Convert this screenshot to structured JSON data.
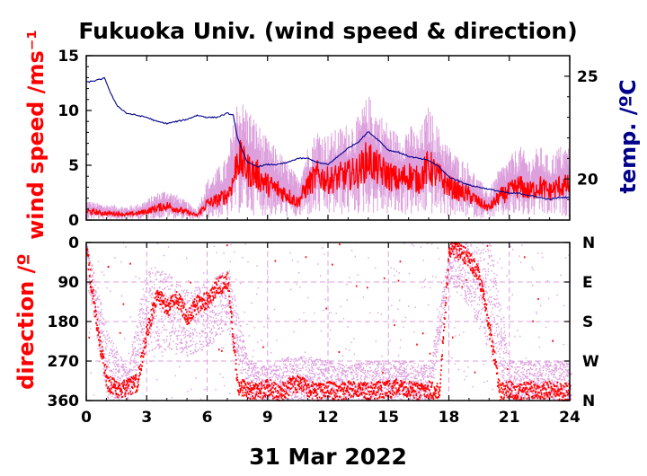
{
  "chart_data": [
    {
      "type": "line",
      "panel": "top",
      "title": "Fukuoka Univ. (wind speed & direction)",
      "ylabel": "wind speed /ms⁻¹",
      "y2label": "temp. /ºC",
      "xlim": [
        0,
        24
      ],
      "ylim": [
        0,
        15
      ],
      "y2lim": [
        18,
        26
      ],
      "yticks": [
        0,
        5,
        10,
        15
      ],
      "y2ticks": [
        20,
        25
      ],
      "colors": {
        "gust": "#dda0dd",
        "wind": "#ff0000",
        "temp": "#00008b"
      },
      "series": [
        {
          "name": "",
          "role": "wind speed (red)",
          "x": [
            0,
            0.5,
            1,
            1.5,
            2,
            2.5,
            3,
            3.5,
            4,
            4.5,
            5,
            5.5,
            6,
            6.5,
            7,
            7.3,
            7.5,
            8,
            8.5,
            9,
            9.5,
            10,
            10.5,
            11,
            11.5,
            12,
            12.5,
            13,
            13.5,
            14,
            14.5,
            15,
            15.5,
            16,
            16.5,
            17,
            17.5,
            18,
            18.5,
            19,
            19.5,
            20,
            20.5,
            21,
            21.5,
            22,
            22.5,
            23,
            23.5,
            24
          ],
          "y": [
            0.8,
            0.7,
            0.6,
            0.6,
            0.5,
            0.6,
            0.8,
            1.1,
            1.3,
            1.0,
            0.7,
            0.4,
            1.5,
            1.8,
            2.3,
            3.5,
            5.8,
            4.6,
            4.1,
            3.2,
            2.8,
            2.3,
            1.6,
            3.2,
            4.1,
            3.6,
            3.9,
            4.1,
            4.4,
            5.6,
            4.6,
            4.1,
            3.6,
            4.1,
            3.6,
            4.9,
            3.9,
            3.1,
            2.6,
            2.3,
            1.6,
            1.1,
            2.1,
            2.6,
            3.1,
            2.6,
            3.1,
            2.6,
            3.1,
            3.1
          ]
        },
        {
          "name": "",
          "role": "gust envelope (violet)",
          "x": [
            0,
            0.5,
            1,
            1.5,
            2,
            2.5,
            3,
            3.5,
            4,
            4.5,
            5,
            5.5,
            6,
            6.5,
            7,
            7.3,
            7.5,
            8,
            8.5,
            9,
            9.5,
            10,
            10.5,
            11,
            11.5,
            12,
            12.5,
            13,
            13.5,
            14,
            14.5,
            15,
            15.5,
            16,
            16.5,
            17,
            17.5,
            18,
            18.5,
            19,
            19.5,
            20,
            20.5,
            21,
            21.5,
            22,
            22.5,
            23,
            23.5,
            24
          ],
          "y": [
            1.8,
            1.5,
            1.4,
            1.3,
            1.2,
            1.4,
            1.8,
            2.4,
            2.7,
            2.2,
            1.6,
            1.0,
            3.5,
            4.5,
            5.5,
            8.5,
            10.8,
            10.0,
            8.5,
            7.0,
            6.2,
            5.0,
            3.8,
            6.5,
            8.0,
            7.5,
            8.0,
            8.5,
            9.0,
            11.0,
            9.5,
            8.5,
            7.5,
            8.5,
            7.5,
            10.0,
            8.0,
            6.5,
            5.5,
            5.0,
            3.5,
            2.6,
            4.5,
            5.5,
            6.5,
            5.5,
            6.5,
            5.5,
            6.5,
            6.5
          ]
        },
        {
          "name": "",
          "role": "temperature (dark blue, right axis)",
          "axis": "y2",
          "x": [
            0,
            0.5,
            0.9,
            1.0,
            1.2,
            1.5,
            2.0,
            2.5,
            3.0,
            3.5,
            4.0,
            4.5,
            5.0,
            5.5,
            6.0,
            6.5,
            7.0,
            7.3,
            7.5,
            8.0,
            8.5,
            9.0,
            9.5,
            10.0,
            10.5,
            11.0,
            11.5,
            12.0,
            12.5,
            13.0,
            13.5,
            14.0,
            14.5,
            15.0,
            15.5,
            16.0,
            16.5,
            17.0,
            17.5,
            18.0,
            18.5,
            19.0,
            19.5,
            20.0,
            20.5,
            21.0,
            21.5,
            22.0,
            22.5,
            23.0,
            23.5,
            24.0
          ],
          "y": [
            24.7,
            24.8,
            24.9,
            24.7,
            24.2,
            23.6,
            23.2,
            23.1,
            23.0,
            22.8,
            22.7,
            22.8,
            22.9,
            23.1,
            23.0,
            23.0,
            23.2,
            23.1,
            22.0,
            20.8,
            20.6,
            20.7,
            20.7,
            20.8,
            21.0,
            21.0,
            20.8,
            20.7,
            21.1,
            21.5,
            21.8,
            22.3,
            21.9,
            21.4,
            21.3,
            21.1,
            21.0,
            20.9,
            20.6,
            20.1,
            19.9,
            19.7,
            19.6,
            19.5,
            19.4,
            19.3,
            19.3,
            19.2,
            19.1,
            19.0,
            19.1,
            19.1
          ]
        }
      ]
    },
    {
      "type": "scatter",
      "panel": "bottom",
      "ylabel": "direction /º",
      "xlabel": "31 Mar 2022",
      "xlim": [
        0,
        24
      ],
      "ylim": [
        360,
        0
      ],
      "xticks": [
        0,
        3,
        6,
        9,
        12,
        15,
        18,
        21,
        24
      ],
      "yticks": [
        0,
        90,
        180,
        270,
        360
      ],
      "y2ticks": [
        "N",
        "E",
        "S",
        "W",
        "N"
      ],
      "y2tick_values": [
        0,
        90,
        180,
        270,
        360
      ],
      "grid": true,
      "series": [
        {
          "name": "",
          "role": "wind direction (red)",
          "x": [
            0,
            0.5,
            1,
            1.5,
            2,
            2.5,
            3,
            3.5,
            4,
            4.5,
            5,
            5.5,
            6,
            6.5,
            7,
            7.5,
            8,
            8.5,
            9,
            9.5,
            10,
            10.5,
            11,
            11.5,
            12,
            12.5,
            13,
            13.5,
            14,
            14.5,
            15,
            15.5,
            16,
            16.5,
            17,
            17.5,
            18,
            18.5,
            19,
            19.5,
            20,
            20.5,
            21,
            21.5,
            22,
            22.5,
            23,
            23.5,
            24
          ],
          "y": [
            20,
            190,
            320,
            335,
            330,
            320,
            200,
            120,
            150,
            130,
            170,
            140,
            130,
            100,
            90,
            330,
            335,
            340,
            330,
            345,
            330,
            320,
            335,
            340,
            335,
            340,
            335,
            335,
            340,
            335,
            335,
            330,
            335,
            340,
            335,
            340,
            15,
            20,
            40,
            80,
            200,
            340,
            335,
            340,
            335,
            340,
            335,
            340,
            340
          ]
        },
        {
          "name": "",
          "role": "direction spread (violet)",
          "x": [
            0,
            1,
            2,
            3,
            4,
            5,
            6,
            7,
            8,
            9,
            10,
            11,
            12,
            13,
            14,
            15,
            16,
            17,
            18,
            19,
            20,
            21,
            22,
            23,
            24
          ],
          "y_low": [
            0,
            200,
            290,
            50,
            70,
            110,
            90,
            60,
            270,
            280,
            260,
            260,
            270,
            280,
            270,
            270,
            270,
            280,
            0,
            0,
            0,
            270,
            270,
            270,
            270
          ],
          "y_high": [
            90,
            360,
            360,
            250,
            250,
            260,
            240,
            200,
            360,
            360,
            360,
            360,
            360,
            360,
            360,
            360,
            360,
            360,
            90,
            150,
            250,
            360,
            360,
            360,
            360
          ]
        }
      ]
    }
  ]
}
